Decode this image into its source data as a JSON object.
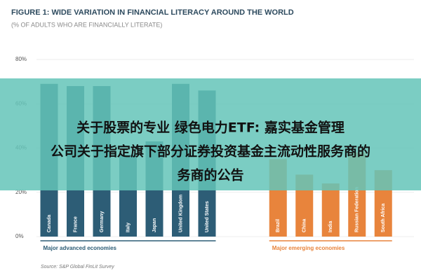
{
  "chart_data": {
    "type": "bar",
    "title": "FIGURE 1: WIDE VARIATION IN FINANCIAL LITERACY AROUND THE WORLD",
    "subtitle": "(% OF ADULTS WHO ARE FINANCIALLY LITERATE)",
    "ylim": [
      0,
      80
    ],
    "yticks": [
      {
        "value": 0,
        "label": "0%"
      },
      {
        "value": 20,
        "label": "20%"
      },
      {
        "value": 40,
        "label": "40%"
      },
      {
        "value": 60,
        "label": "60%"
      },
      {
        "value": 80,
        "label": "80%"
      }
    ],
    "series": [
      {
        "name": "Major advanced economies",
        "color": "#2d5d76",
        "categories": [
          "Canada",
          "France",
          "Germany",
          "Italy",
          "Japan",
          "United Kingdom",
          "United States"
        ],
        "values": [
          69,
          68,
          68,
          37,
          43,
          69,
          66
        ]
      },
      {
        "name": "Major emerging economies",
        "color": "#e8843c",
        "categories": [
          "Brazil",
          "China",
          "India",
          "Russian Federation",
          "South Africa"
        ],
        "values": [
          35,
          28,
          24,
          38,
          30
        ]
      }
    ],
    "source": "Source: S&P Global FinLit Survey"
  },
  "overlay": {
    "lines": [
      "关于股票的专业 绿色电力ETF: 嘉实基金管理",
      "公司关于指定旗下部分证券投资基金主流动性服务商的",
      "务商的公告"
    ]
  }
}
